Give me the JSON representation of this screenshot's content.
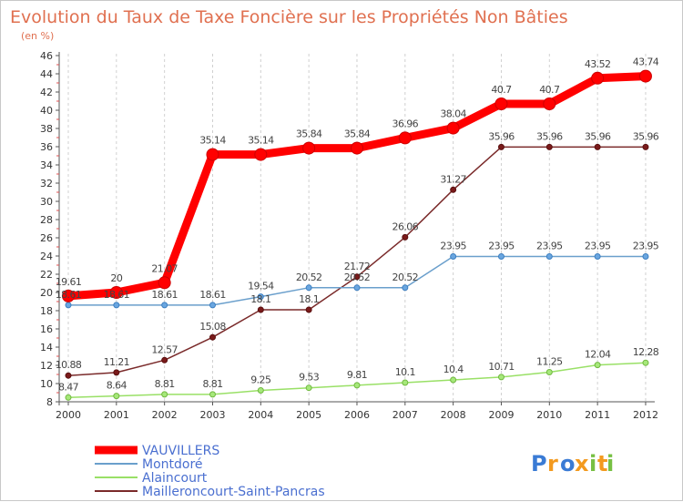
{
  "chart_data": {
    "type": "line",
    "title": "Evolution du Taux de Taxe Foncière sur les Propriétés Non Bâties",
    "subtitle": "(en %)",
    "xlabel": "",
    "ylabel": "",
    "categories": [
      "2000",
      "2001",
      "2002",
      "2003",
      "2004",
      "2005",
      "2006",
      "2007",
      "2008",
      "2009",
      "2010",
      "2011",
      "2012"
    ],
    "ylim": [
      8,
      46
    ],
    "ytick_step": 2,
    "grid": "vertical",
    "legend_position": "bottom-left",
    "series": [
      {
        "name": "VAUVILLERS",
        "color": "#ff0000",
        "values": [
          19.61,
          20,
          21.07,
          35.14,
          35.14,
          35.84,
          35.84,
          36.96,
          38.04,
          40.7,
          40.7,
          43.52,
          43.74
        ],
        "labels": [
          "19.61",
          "20",
          "21.07",
          "35.14",
          "35.14",
          "35.84",
          "35.84",
          "36.96",
          "38.04",
          "40.7",
          "40.7",
          "43.52",
          "43.74"
        ]
      },
      {
        "name": "Montdoré",
        "color": "#6a9fcc",
        "values": [
          18.61,
          18.61,
          18.61,
          18.61,
          19.54,
          20.52,
          20.52,
          20.52,
          23.95,
          23.95,
          23.95,
          23.95,
          23.95
        ],
        "labels": [
          "18.61",
          "18.61",
          "18.61",
          "18.61",
          "19.54",
          "20.52",
          "20.52",
          "20.52",
          "23.95",
          "23.95",
          "23.95",
          "23.95",
          "23.95"
        ]
      },
      {
        "name": "Alaincourt",
        "color": "#99e066",
        "values": [
          8.47,
          8.64,
          8.81,
          8.81,
          9.25,
          9.53,
          9.81,
          10.1,
          10.4,
          10.71,
          11.25,
          12.04,
          12.28
        ],
        "labels": [
          "8.47",
          "8.64",
          "8.81",
          "8.81",
          "9.25",
          "9.53",
          "9.81",
          "10.1",
          "10.4",
          "10.71",
          "11.25",
          "12.04",
          "12.28"
        ]
      },
      {
        "name": "Mailleroncourt-Saint-Pancras",
        "color": "#7a2a2a",
        "values": [
          10.88,
          11.21,
          12.57,
          15.08,
          18.1,
          18.1,
          21.72,
          26.06,
          31.27,
          35.96,
          35.96,
          35.96,
          35.96
        ],
        "labels": [
          "10.88",
          "11.21",
          "12.57",
          "15.08",
          "18.1",
          "18.1",
          "21.72",
          "26.06",
          "31.27",
          "35.96",
          "35.96",
          "35.96",
          "35.96"
        ]
      }
    ]
  },
  "logo": {
    "text": "Proxiti"
  },
  "colors": {
    "title": "#e07050",
    "subtitle": "#e07050",
    "axis": "#555555",
    "grid": "#d0d0d0",
    "legend_text": "#4a6fd0",
    "logo_blue": "#3a7bd5",
    "logo_orange": "#f39a1f",
    "logo_green": "#77c043"
  }
}
